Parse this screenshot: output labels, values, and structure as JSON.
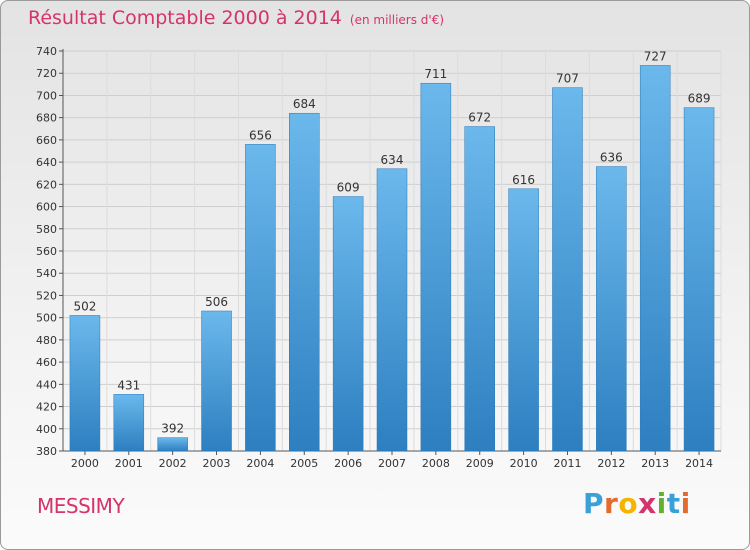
{
  "header": {
    "title": "Résultat Comptable 2000 à 2014",
    "subtitle": "(en milliers d'€)"
  },
  "footer": {
    "commune": "MESSIMY"
  },
  "logo": {
    "text": "Proxiti",
    "letters": [
      {
        "ch": "P",
        "color": "#3aa0d8"
      },
      {
        "ch": "r",
        "color": "#e46a2e"
      },
      {
        "ch": "o",
        "color": "#f4b400"
      },
      {
        "ch": "x",
        "color": "#d6336c"
      },
      {
        "ch": "i",
        "color": "#62b22f"
      },
      {
        "ch": "t",
        "color": "#3aa0d8"
      },
      {
        "ch": "i",
        "color": "#e46a2e"
      }
    ]
  },
  "colors": {
    "accent": "#d6336c",
    "bar_light": "#6bb8ec",
    "bar_dark": "#2d7fc0"
  },
  "chart_data": {
    "type": "bar",
    "title": "Résultat Comptable 2000 à 2014",
    "subtitle": "(en milliers d'€)",
    "xlabel": "",
    "ylabel": "",
    "categories": [
      "2000",
      "2001",
      "2002",
      "2003",
      "2004",
      "2005",
      "2006",
      "2007",
      "2008",
      "2009",
      "2010",
      "2011",
      "2012",
      "2013",
      "2014"
    ],
    "values": [
      502,
      431,
      392,
      506,
      656,
      684,
      609,
      634,
      711,
      672,
      616,
      707,
      636,
      727,
      689
    ],
    "ylim": [
      380,
      740
    ],
    "ytick_step": 20,
    "grid": true
  }
}
